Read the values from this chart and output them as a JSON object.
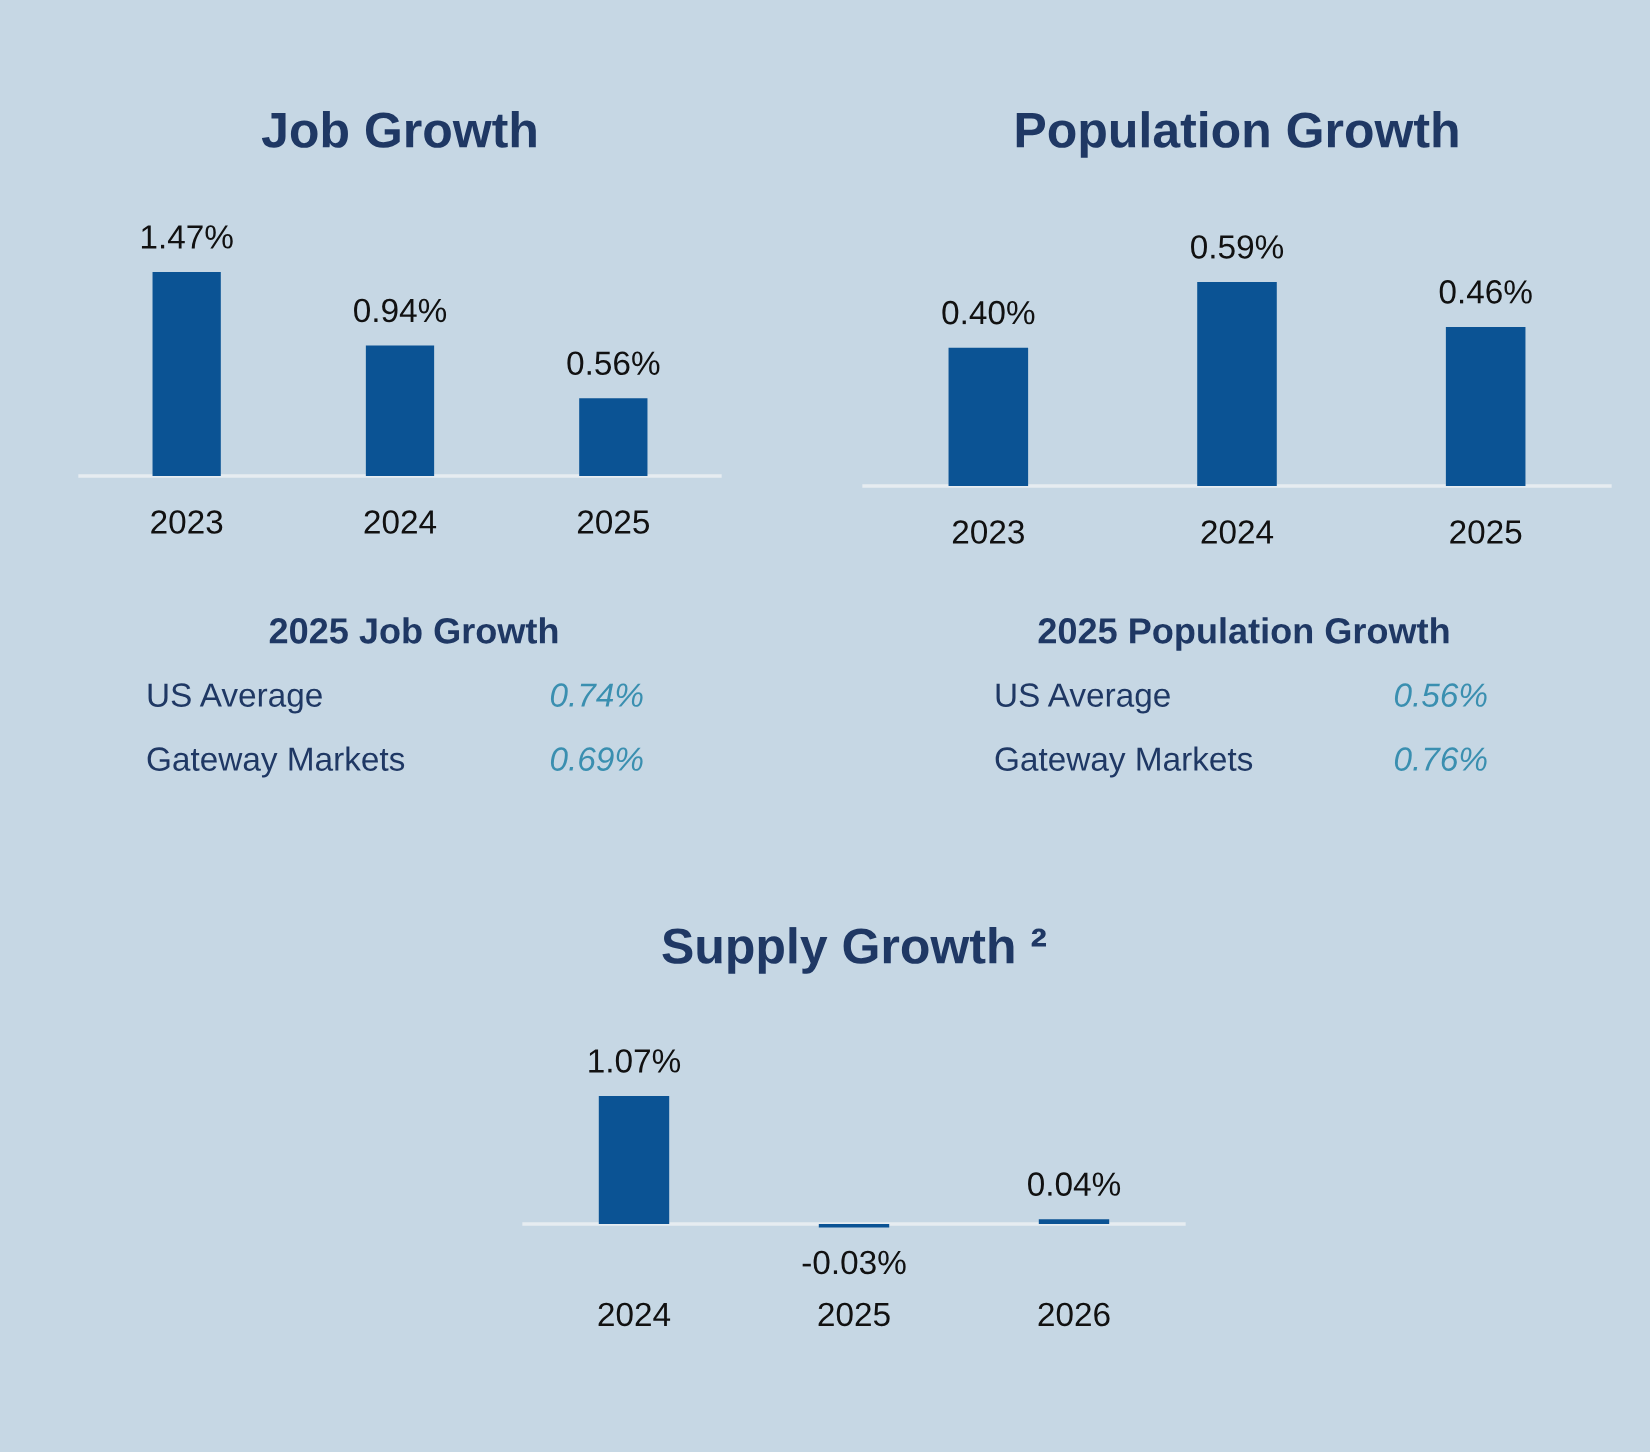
{
  "chart_data": [
    {
      "type": "bar",
      "title": "Job Growth",
      "categories": [
        "2023",
        "2024",
        "2025"
      ],
      "values": [
        1.47,
        0.94,
        0.56
      ],
      "value_labels": [
        "1.47%",
        "0.94%",
        "0.56%"
      ],
      "color": "#0b5394"
    },
    {
      "type": "bar",
      "title": "Population Growth",
      "categories": [
        "2023",
        "2024",
        "2025"
      ],
      "values": [
        0.4,
        0.59,
        0.46
      ],
      "value_labels": [
        "0.40%",
        "0.59%",
        "0.46%"
      ],
      "color": "#0b5394"
    },
    {
      "type": "other",
      "title": "2025 Job Growth",
      "annotations": [
        "US Average",
        "0.74%",
        "Gateway Markets",
        "0.69%"
      ]
    },
    {
      "type": "other",
      "title": "2025 Population Growth",
      "annotations": [
        "US Average",
        "0.56%",
        "Gateway Markets",
        "0.76%"
      ]
    },
    {
      "type": "bar",
      "title": "Supply Growth ²",
      "categories": [
        "2024",
        "2025",
        "2026"
      ],
      "values": [
        1.07,
        -0.03,
        0.04
      ],
      "value_labels": [
        "1.07%",
        "-0.03%",
        "0.04%"
      ],
      "color": "#0b5394"
    }
  ]
}
